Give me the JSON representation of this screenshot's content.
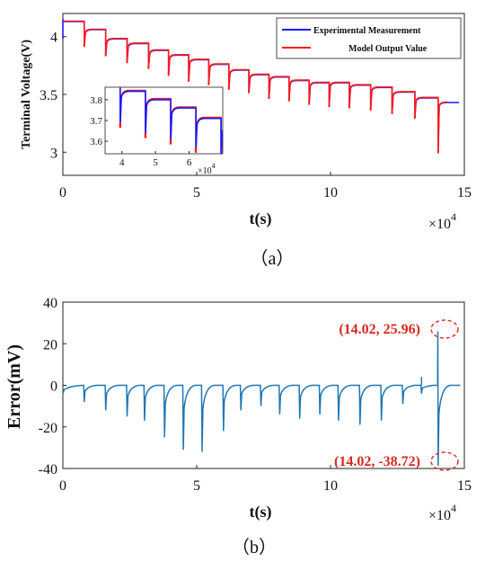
{
  "chart_data": [
    {
      "type": "line",
      "panel_label": "（a）",
      "xlabel": "t(s)",
      "ylabel": "Terminal Voltage(V)",
      "x_multiplier": "×10",
      "x_multiplier_exp": "4",
      "xlim": [
        0,
        15
      ],
      "ylim": [
        2.8,
        4.2
      ],
      "xticks": [
        0,
        5,
        10,
        15
      ],
      "yticks": [
        3,
        3.5,
        4
      ],
      "xtick_labels": [
        "0",
        "5",
        "10",
        "15"
      ],
      "ytick_labels": [
        "3",
        "3.5",
        "4"
      ],
      "legend_position": "top-right",
      "series": [
        {
          "name": "Experimental Measurement",
          "color": "#1a1aff"
        },
        {
          "name": "Model Output Value",
          "color": "#ff1a1a"
        }
      ],
      "pulses": [
        {
          "t": 0.8,
          "v_rest": 4.13,
          "v_drop": 3.92
        },
        {
          "t": 1.6,
          "v_rest": 4.06,
          "v_drop": 3.84
        },
        {
          "t": 2.4,
          "v_rest": 3.98,
          "v_drop": 3.78
        },
        {
          "t": 3.2,
          "v_rest": 3.94,
          "v_drop": 3.73
        },
        {
          "t": 3.95,
          "v_rest": 3.88,
          "v_drop": 3.67
        },
        {
          "t": 4.7,
          "v_rest": 3.84,
          "v_drop": 3.62
        },
        {
          "t": 5.45,
          "v_rest": 3.8,
          "v_drop": 3.59
        },
        {
          "t": 6.2,
          "v_rest": 3.76,
          "v_drop": 3.55
        },
        {
          "t": 6.95,
          "v_rest": 3.71,
          "v_drop": 3.52
        },
        {
          "t": 7.7,
          "v_rest": 3.67,
          "v_drop": 3.47
        },
        {
          "t": 8.45,
          "v_rest": 3.65,
          "v_drop": 3.45
        },
        {
          "t": 9.2,
          "v_rest": 3.62,
          "v_drop": 3.42
        },
        {
          "t": 9.95,
          "v_rest": 3.6,
          "v_drop": 3.4
        },
        {
          "t": 10.7,
          "v_rest": 3.6,
          "v_drop": 3.39
        },
        {
          "t": 11.5,
          "v_rest": 3.58,
          "v_drop": 3.37
        },
        {
          "t": 12.3,
          "v_rest": 3.56,
          "v_drop": 3.34
        },
        {
          "t": 13.15,
          "v_rest": 3.52,
          "v_drop": 3.3
        },
        {
          "t": 14.02,
          "v_rest": 3.47,
          "v_drop": 3.0
        }
      ],
      "final_voltage": 3.43,
      "inset": {
        "xlim": [
          3.5,
          7
        ],
        "ylim": [
          3.54,
          3.86
        ],
        "xticks": [
          4,
          5,
          6
        ],
        "yticks": [
          3.6,
          3.7,
          3.8
        ],
        "xtick_labels": [
          "4",
          "5",
          "6"
        ],
        "ytick_labels": [
          "3.6",
          "3.7",
          "3.8"
        ],
        "x_multiplier": "×10",
        "x_multiplier_exp": "4"
      }
    },
    {
      "type": "line",
      "panel_label": "（b）",
      "xlabel": "t(s)",
      "ylabel": "Error(mV)",
      "x_multiplier": "×10",
      "x_multiplier_exp": "4",
      "xlim": [
        0,
        15
      ],
      "ylim": [
        -40,
        40
      ],
      "xticks": [
        0,
        5,
        10,
        15
      ],
      "yticks": [
        -40,
        -20,
        0,
        20,
        40
      ],
      "xtick_labels": [
        "0",
        "5",
        "10",
        "15"
      ],
      "ytick_labels": [
        "-40",
        "-20",
        "0",
        "20",
        "40"
      ],
      "series": [
        {
          "name": "",
          "color": "#1f77b4"
        }
      ],
      "spikes": [
        {
          "t": 0.8,
          "e": -8
        },
        {
          "t": 1.6,
          "e": -12
        },
        {
          "t": 2.4,
          "e": -15
        },
        {
          "t": 3.05,
          "e": -17
        },
        {
          "t": 3.8,
          "e": -25
        },
        {
          "t": 4.5,
          "e": -31
        },
        {
          "t": 5.2,
          "e": -32
        },
        {
          "t": 6.0,
          "e": -22
        },
        {
          "t": 6.65,
          "e": -12
        },
        {
          "t": 7.4,
          "e": -10
        },
        {
          "t": 8.1,
          "e": -14
        },
        {
          "t": 8.85,
          "e": -16
        },
        {
          "t": 9.6,
          "e": -14
        },
        {
          "t": 10.3,
          "e": -17
        },
        {
          "t": 11.1,
          "e": -19
        },
        {
          "t": 11.9,
          "e": -17
        },
        {
          "t": 12.7,
          "e": -9
        },
        {
          "t": 13.4,
          "e": -4
        },
        {
          "t": 14.02,
          "e": -38.72
        }
      ],
      "annotations": [
        {
          "label": "(14.02, 25.96)",
          "t": 14.02,
          "e": 25.96
        },
        {
          "label": "(14.02, -38.72)",
          "t": 14.02,
          "e": -38.72
        }
      ]
    }
  ]
}
